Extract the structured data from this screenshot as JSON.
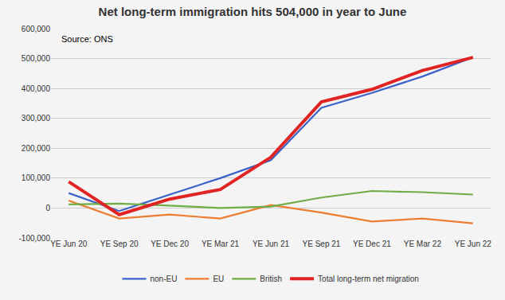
{
  "chart_data": {
    "type": "line",
    "title": "Net long-term immigration hits 504,000 in year to June",
    "annotations": [
      "Source: ONS"
    ],
    "categories": [
      "YE Jun 20",
      "YE Sep 20",
      "YE Dec 20",
      "YE Mar 21",
      "YE Jun 21",
      "YE Sep 21",
      "YE Dec 21",
      "YE Mar 22",
      "YE Jun 22"
    ],
    "series": [
      {
        "name": "non-EU",
        "color": "#3b62c9",
        "values": [
          50000,
          -10000,
          45000,
          100000,
          160000,
          335000,
          385000,
          440000,
          504000
        ]
      },
      {
        "name": "EU",
        "color": "#ed7d31",
        "values": [
          25000,
          -35000,
          -22000,
          -35000,
          10000,
          -15000,
          -45000,
          -35000,
          -51000
        ]
      },
      {
        "name": "British",
        "color": "#70ad47",
        "values": [
          12000,
          15000,
          8000,
          0,
          5000,
          35000,
          57000,
          53000,
          45000
        ]
      },
      {
        "name": "Total long-term net migration",
        "color": "#e02424",
        "values": [
          88000,
          -22000,
          30000,
          62000,
          170000,
          355000,
          397000,
          460000,
          504000
        ]
      }
    ],
    "ylim": [
      -100000,
      600000
    ],
    "yticks": [
      {
        "value": -100000,
        "label": "-100,000"
      },
      0,
      {
        "value": 100000,
        "label": "100,000"
      },
      {
        "value": 200000,
        "label": "200,000"
      },
      {
        "value": 300000,
        "label": "300,000"
      },
      {
        "value": 400000,
        "label": "400,000"
      },
      {
        "value": 500000,
        "label": "500,000"
      },
      {
        "value": 600000,
        "label": "600,000"
      }
    ],
    "grid": true,
    "legend": "bottom"
  }
}
